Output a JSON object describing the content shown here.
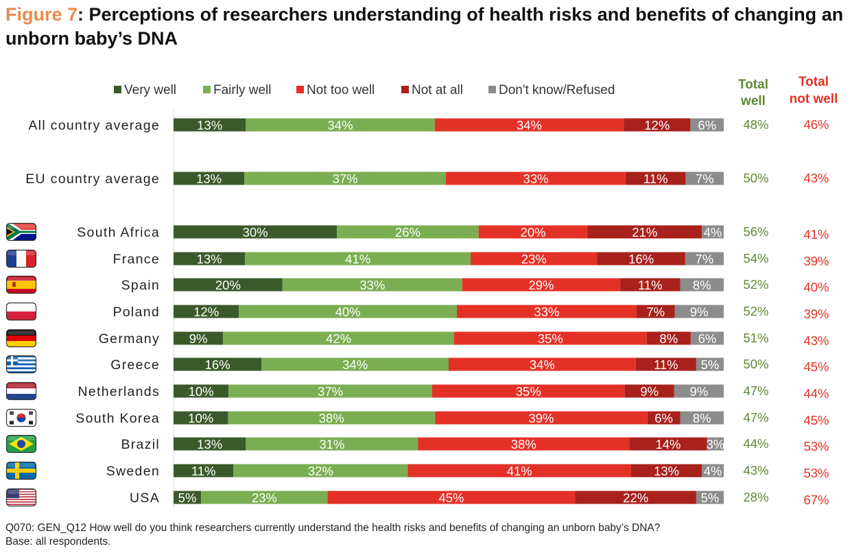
{
  "title": {
    "figure_label": "Figure 7",
    "text": ": Perceptions of researchers understanding of health risks and benefits of changing an unborn baby’s DNA"
  },
  "chart_data": {
    "type": "bar",
    "orientation": "horizontal",
    "stacked": true,
    "value_unit": "%",
    "legend_position": "top",
    "grid": false,
    "series": [
      {
        "name": "Very well",
        "color": "#3B5A2B"
      },
      {
        "name": "Fairly well",
        "color": "#7BAE52"
      },
      {
        "name": "Not too well",
        "color": "#E43127"
      },
      {
        "name": "Not at all",
        "color": "#A8211C"
      },
      {
        "name": "Don't know/Refused",
        "color": "#8C8C8C"
      }
    ],
    "total_columns": [
      {
        "label_line1": "Total",
        "label_line2": "well",
        "color": "#5C8A34"
      },
      {
        "label_line1": "Total",
        "label_line2": "not well",
        "color": "#E43127"
      }
    ],
    "rows": [
      {
        "category": "All country average",
        "flag": "",
        "values": [
          13,
          34,
          34,
          12,
          6
        ],
        "total_well": "48%",
        "total_not_well": "46%"
      },
      {
        "category": "EU country average",
        "flag": "",
        "values": [
          13,
          37,
          33,
          11,
          7
        ],
        "total_well": "50%",
        "total_not_well": "43%"
      },
      {
        "category": "South Africa",
        "flag": "south-africa",
        "values": [
          30,
          26,
          20,
          21,
          4
        ],
        "total_well": "56%",
        "total_not_well": "41%"
      },
      {
        "category": "France",
        "flag": "france",
        "values": [
          13,
          41,
          23,
          16,
          7
        ],
        "total_well": "54%",
        "total_not_well": "39%"
      },
      {
        "category": "Spain",
        "flag": "spain",
        "values": [
          20,
          33,
          29,
          11,
          8
        ],
        "total_well": "52%",
        "total_not_well": "40%"
      },
      {
        "category": "Poland",
        "flag": "poland",
        "values": [
          12,
          40,
          33,
          7,
          9
        ],
        "total_well": "52%",
        "total_not_well": "39%"
      },
      {
        "category": "Germany",
        "flag": "germany",
        "values": [
          9,
          42,
          35,
          8,
          6
        ],
        "total_well": "51%",
        "total_not_well": "43%"
      },
      {
        "category": "Greece",
        "flag": "greece",
        "values": [
          16,
          34,
          34,
          11,
          5
        ],
        "total_well": "50%",
        "total_not_well": "45%"
      },
      {
        "category": "Netherlands",
        "flag": "netherlands",
        "values": [
          10,
          37,
          35,
          9,
          9
        ],
        "total_well": "47%",
        "total_not_well": "44%"
      },
      {
        "category": "South Korea",
        "flag": "south-korea",
        "values": [
          10,
          38,
          39,
          6,
          8
        ],
        "total_well": "47%",
        "total_not_well": "45%"
      },
      {
        "category": "Brazil",
        "flag": "brazil",
        "values": [
          13,
          31,
          38,
          14,
          3
        ],
        "total_well": "44%",
        "total_not_well": "53%"
      },
      {
        "category": "Sweden",
        "flag": "sweden",
        "values": [
          11,
          32,
          41,
          13,
          4
        ],
        "total_well": "43%",
        "total_not_well": "53%"
      },
      {
        "category": "USA",
        "flag": "usa",
        "values": [
          5,
          23,
          45,
          22,
          5
        ],
        "total_well": "28%",
        "total_not_well": "67%"
      }
    ]
  },
  "footnote": {
    "line1": "Q070: GEN_Q12 How well do you think researchers currently  understand the health risks and benefits of changing an unborn baby’s DNA?",
    "line2": "Base: all respondents."
  }
}
